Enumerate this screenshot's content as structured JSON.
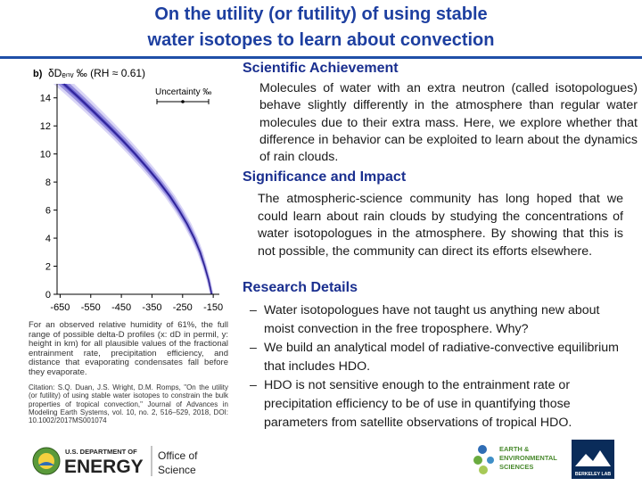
{
  "slide": {
    "title_line1": "On the utility (or futility) of using stable",
    "title_line2": "water isotopes to learn about convection"
  },
  "figure": {
    "panel_label": "b)",
    "header": "δDₑₙᵥ ‰   (RH ≈ 0.61)",
    "legend_label": "Uncertainty ‰",
    "caption": "For an observed relative humidity of 61%, the full range of possible delta-D profiles (x: dD in permil, y: height in km) for all plausible values of the fractional entrainment rate, precipitation efficiency, and distance that evaporating condensates fall before they evaporate.",
    "citation": "Citation: S.Q. Duan, J.S. Wright, D.M. Romps, \"On the utility (or futility) of using stable water isotopes to constrain the bulk properties of tropical convection,\" Journal of Advances in Modeling Earth Systems, vol. 10, no. 2, 516–529, 2018, DOI: 10.1002/2017MS001074"
  },
  "chart_data": {
    "type": "area",
    "title": "δDₑₙᵥ ‰ (RH ≈ 0.61)",
    "xlabel": "",
    "ylabel": "",
    "xlim": [
      -660,
      -130
    ],
    "ylim": [
      0,
      15
    ],
    "x_ticks": [
      -650,
      -550,
      -450,
      -350,
      -250,
      -150
    ],
    "x_tick_labels": [
      "-650",
      "-550",
      "-450",
      "-350",
      "-250",
      "-150"
    ],
    "y_ticks": [
      0,
      2,
      4,
      6,
      8,
      10,
      12,
      14
    ],
    "y_tick_labels": [
      "0",
      "2",
      "4",
      "6",
      "8",
      "10",
      "12",
      "14"
    ],
    "grid": false,
    "legend": "top-right",
    "series": [
      {
        "name": "",
        "height_km": [
          0,
          1,
          2,
          3,
          4,
          5,
          6,
          7,
          8,
          9,
          10,
          11,
          12,
          13,
          14,
          15
        ],
        "dD_center": [
          -155,
          -165,
          -178,
          -193,
          -212,
          -235,
          -262,
          -292,
          -327,
          -365,
          -405,
          -448,
          -493,
          -540,
          -588,
          -638
        ],
        "dD_spread": [
          6,
          7,
          8,
          10,
          12,
          14,
          16,
          18,
          20,
          22,
          24,
          26,
          28,
          30,
          32,
          34
        ]
      }
    ],
    "colors": {
      "band": "#4a3fc2",
      "band_light": "#b9b3ef",
      "axis": "#000000"
    }
  },
  "right": {
    "achievement_heading": "Scientific Achievement",
    "achievement_text": "Molecules of water with an extra neutron (called isotopologues) behave slightly differently in the atmosphere than regular water molecules due to their extra mass. Here, we explore whether that difference in behavior can be exploited to learn about the dynamics of rain clouds.",
    "impact_heading": "Significance and Impact",
    "impact_text": "The atmospheric-science community has long hoped that we could learn about rain clouds by studying the concentrations of water isotopologues in the atmosphere. By showing that this is not possible, the community can direct its efforts elsewhere.",
    "details_heading": "Research Details",
    "bullets": [
      "Water isotopologues have not taught us anything new about moist convection in the free troposphere. Why?",
      "We build an analytical model of radiative-convective equilibrium that includes HDO.",
      "HDO is not sensitive enough to the entrainment rate or precipitation efficiency to be of use in quantifying those parameters from satellite observations of tropical HDO."
    ],
    "bullet_marker": "–"
  },
  "footer": {
    "doe_small": "U.S. DEPARTMENT OF",
    "doe_big": "ENERGY",
    "office_line1": "Office of",
    "office_line2": "Science",
    "ees_line1": "EARTH &",
    "ees_line2": "ENVIRONMENTAL",
    "ees_line3": "SCIENCES",
    "berkeley_lab": "BERKELEY LAB"
  },
  "colors": {
    "title": "#1d3fa0",
    "heading": "#1a2f8f",
    "divider": "#1f4fa8",
    "doe_green": "#5a9a3a"
  }
}
